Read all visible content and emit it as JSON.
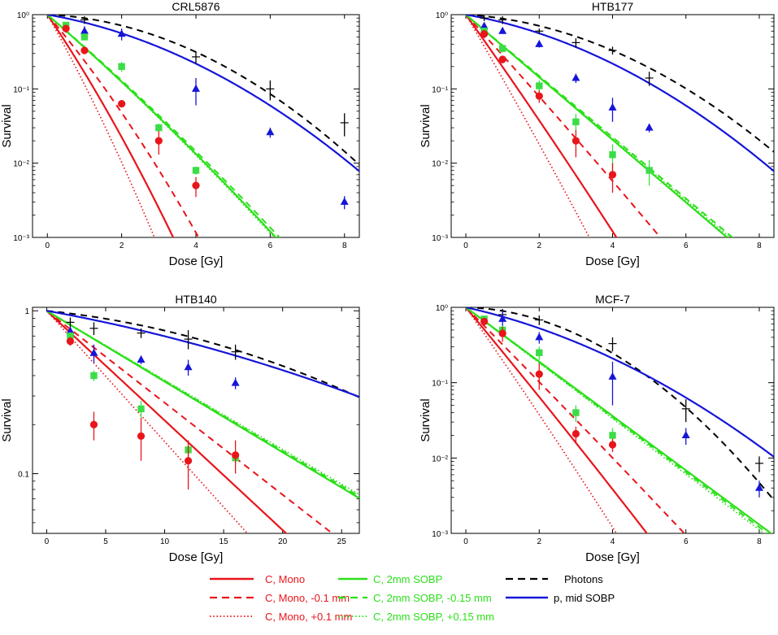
{
  "colors": {
    "red": "#e8151b",
    "green": "#2be019",
    "blue": "#1515d8",
    "black": "#000000",
    "points_green": "#3bdd46"
  },
  "legend": {
    "col1": [
      "C, Mono",
      "C, Mono, -0.1 mm",
      "C, Mono, +0.1 mm"
    ],
    "col2": [
      "C, 2mm SOBP",
      "C, 2mm SOBP, -0.15 mm",
      "C, 2mm SOBP, +0.15 mm"
    ],
    "col3": [
      "Photons",
      "p, mid SOBP"
    ]
  },
  "chart_data": [
    {
      "type": "line",
      "title": "CRL5876",
      "xlabel": "Dose  [Gy]",
      "ylabel": "Survival",
      "xlim": [
        -0.4,
        8.4
      ],
      "ylim": [
        0.001,
        1
      ],
      "yscale": "log",
      "xticks": [
        0,
        2,
        4,
        6,
        8
      ],
      "ytick_labels": [
        "10⁰",
        "10⁻¹",
        "10⁻²",
        "10⁻³"
      ],
      "curves": {
        "c_mono": {
          "alpha": 1.7,
          "beta": 0.1
        },
        "c_mono_minus": {
          "alpha": 1.35,
          "beta": 0.085
        },
        "c_mono_plus": {
          "alpha": 2.05,
          "beta": 0.12
        },
        "c_sobp": {
          "alpha": 1.0,
          "beta": 0.02
        },
        "c_sobp_minus": {
          "alpha": 0.98,
          "beta": 0.02
        },
        "c_sobp_plus": {
          "alpha": 1.01,
          "beta": 0.02
        },
        "photons": {
          "alpha": 0.05,
          "beta": 0.06
        },
        "p_sobp": {
          "alpha": 0.2,
          "beta": 0.045
        }
      },
      "points": {
        "carbon_mono": [
          [
            0.5,
            0.65,
            0.08
          ],
          [
            1,
            0.33,
            0.03
          ],
          [
            2,
            0.063,
            0.006
          ],
          [
            3,
            0.02,
            0.007
          ],
          [
            4,
            0.005,
            0.0015
          ]
        ],
        "carbon_sobp": [
          [
            0.5,
            0.72,
            0.05
          ],
          [
            1,
            0.5,
            0.04
          ],
          [
            2,
            0.2,
            0.03
          ],
          [
            3,
            0.03,
            0.004
          ],
          [
            4,
            0.008,
            0.001
          ]
        ],
        "photons": [
          [
            1,
            0.85,
            0.1
          ],
          [
            4,
            0.27,
            0.05
          ],
          [
            6,
            0.1,
            0.03
          ],
          [
            8,
            0.035,
            0.012
          ]
        ],
        "protons": [
          [
            1,
            0.6,
            0.1
          ],
          [
            2,
            0.55,
            0.1
          ],
          [
            4,
            0.1,
            0.04
          ],
          [
            6,
            0.026,
            0.004
          ],
          [
            8,
            0.003,
            0.0006
          ]
        ]
      }
    },
    {
      "type": "line",
      "title": "HTB177",
      "xlabel": "Dose  [Gy]",
      "ylabel": "Survival",
      "xlim": [
        -0.4,
        8.4
      ],
      "ylim": [
        0.001,
        1
      ],
      "yscale": "log",
      "xticks": [
        0,
        2,
        4,
        6,
        8
      ],
      "ytick_labels": [
        "10⁰",
        "10⁻¹",
        "10⁻²",
        "10⁻³"
      ],
      "curves": {
        "c_mono": {
          "alpha": 1.6,
          "beta": 0.02
        },
        "c_mono_minus": {
          "alpha": 1.25,
          "beta": 0.01
        },
        "c_mono_plus": {
          "alpha": 1.95,
          "beta": 0.03
        },
        "c_sobp": {
          "alpha": 0.97,
          "beta": 0.0
        },
        "c_sobp_minus": {
          "alpha": 0.95,
          "beta": 0.0
        },
        "c_sobp_plus": {
          "alpha": 0.96,
          "beta": 0.0
        },
        "photons": {
          "alpha": 0.07,
          "beta": 0.052
        },
        "p_sobp": {
          "alpha": 0.2,
          "beta": 0.045
        }
      },
      "points": {
        "carbon_mono": [
          [
            0.5,
            0.55,
            0.07
          ],
          [
            1,
            0.25,
            0.03
          ],
          [
            2,
            0.08,
            0.015
          ],
          [
            3,
            0.02,
            0.008
          ],
          [
            4,
            0.007,
            0.003
          ]
        ],
        "carbon_sobp": [
          [
            0.5,
            0.6,
            0.05
          ],
          [
            1,
            0.35,
            0.04
          ],
          [
            2,
            0.11,
            0.02
          ],
          [
            3,
            0.036,
            0.01
          ],
          [
            4,
            0.013,
            0.005
          ],
          [
            5,
            0.008,
            0.003
          ]
        ],
        "photons": [
          [
            0.5,
            0.9,
            0.08
          ],
          [
            1,
            0.85,
            0.1
          ],
          [
            2,
            0.6,
            0.05
          ],
          [
            3,
            0.42,
            0.06
          ],
          [
            4,
            0.33,
            0.04
          ],
          [
            5,
            0.14,
            0.03
          ]
        ],
        "protons": [
          [
            0.5,
            0.7,
            0.05
          ],
          [
            1,
            0.6,
            0.05
          ],
          [
            2,
            0.4,
            0.04
          ],
          [
            3,
            0.14,
            0.02
          ],
          [
            4,
            0.056,
            0.02
          ],
          [
            5,
            0.03,
            0.004
          ]
        ]
      }
    },
    {
      "type": "line",
      "title": "HTB140",
      "xlabel": "Dose  [Gy]",
      "ylabel": "Survival",
      "xlim": [
        -1.2,
        26.5
      ],
      "ylim": [
        0.043,
        1.05
      ],
      "yscale": "log",
      "xticks": [
        0,
        5,
        10,
        15,
        20,
        25
      ],
      "ytick_labels": [
        "1",
        "0.1"
      ],
      "curves": {
        "c_mono": {
          "alpha": 0.155,
          "beta": 0.0
        },
        "c_mono_minus": {
          "alpha": 0.13,
          "beta": 0.0
        },
        "c_mono_plus": {
          "alpha": 0.185,
          "beta": 0.0
        },
        "c_sobp": {
          "alpha": 0.1,
          "beta": 0.0
        },
        "c_sobp_minus": {
          "alpha": 0.099,
          "beta": 0.0
        },
        "c_sobp_plus": {
          "alpha": 0.098,
          "beta": 0.0
        },
        "photons": {
          "alpha": 0.017,
          "beta": 0.0011
        },
        "p_sobp": {
          "alpha": 0.03,
          "beta": 0.0006
        }
      },
      "points": {
        "carbon_mono": [
          [
            2,
            0.65,
            0.04
          ],
          [
            4,
            0.2,
            0.04
          ],
          [
            8,
            0.17,
            0.05
          ],
          [
            12,
            0.12,
            0.04
          ],
          [
            16,
            0.13,
            0.03
          ]
        ],
        "carbon_sobp": [
          [
            2,
            0.7,
            0.04
          ],
          [
            4,
            0.4,
            0.03
          ],
          [
            8,
            0.25,
            0.03
          ],
          [
            12,
            0.14,
            0.02
          ],
          [
            16,
            0.125,
            0.01
          ]
        ],
        "photons": [
          [
            2,
            0.85,
            0.06
          ],
          [
            4,
            0.78,
            0.07
          ],
          [
            8,
            0.73,
            0.05
          ],
          [
            12,
            0.67,
            0.09
          ],
          [
            16,
            0.56,
            0.06
          ]
        ],
        "protons": [
          [
            2,
            0.75,
            0.05
          ],
          [
            4,
            0.55,
            0.07
          ],
          [
            8,
            0.5,
            0.03
          ],
          [
            12,
            0.45,
            0.05
          ],
          [
            16,
            0.36,
            0.03
          ]
        ]
      }
    },
    {
      "type": "line",
      "title": "MCF-7",
      "xlabel": "Dose  [Gy]",
      "ylabel": "Survival",
      "xlim": [
        -0.4,
        8.4
      ],
      "ylim": [
        0.001,
        1
      ],
      "yscale": "log",
      "xticks": [
        0,
        2,
        4,
        6,
        8
      ],
      "ytick_labels": [
        "10⁰",
        "10⁻¹",
        "10⁻²",
        "10⁻³"
      ],
      "curves": {
        "c_mono": {
          "alpha": 1.35,
          "beta": 0.01
        },
        "c_mono_minus": {
          "alpha": 1.13,
          "beta": 0.005
        },
        "c_mono_plus": {
          "alpha": 1.6,
          "beta": 0.02
        },
        "c_sobp": {
          "alpha": 0.83,
          "beta": 0.0
        },
        "c_sobp_minus": {
          "alpha": 0.84,
          "beta": 0.0
        },
        "c_sobp_plus": {
          "alpha": 0.85,
          "beta": 0.0
        },
        "photons": {
          "alpha": 0.03,
          "beta": 0.08
        },
        "p_sobp": {
          "alpha": 0.25,
          "beta": 0.035
        }
      },
      "points": {
        "carbon_mono": [
          [
            0.5,
            0.65,
            0.05
          ],
          [
            1,
            0.45,
            0.1
          ],
          [
            2,
            0.13,
            0.05
          ],
          [
            3,
            0.021,
            0.005
          ],
          [
            4,
            0.015,
            0.003
          ]
        ],
        "carbon_sobp": [
          [
            0.5,
            0.7,
            0.05
          ],
          [
            1,
            0.5,
            0.07
          ],
          [
            2,
            0.25,
            0.05
          ],
          [
            3,
            0.04,
            0.01
          ],
          [
            4,
            0.02,
            0.005
          ]
        ],
        "photons": [
          [
            1,
            0.8,
            0.15
          ],
          [
            2,
            0.68,
            0.1
          ],
          [
            4,
            0.33,
            0.07
          ],
          [
            6,
            0.045,
            0.015
          ],
          [
            8,
            0.0085,
            0.002
          ]
        ],
        "protons": [
          [
            1,
            0.7,
            0.2
          ],
          [
            2,
            0.4,
            0.07
          ],
          [
            4,
            0.12,
            0.07
          ],
          [
            6,
            0.02,
            0.005
          ],
          [
            8,
            0.004,
            0.001
          ]
        ]
      }
    }
  ]
}
